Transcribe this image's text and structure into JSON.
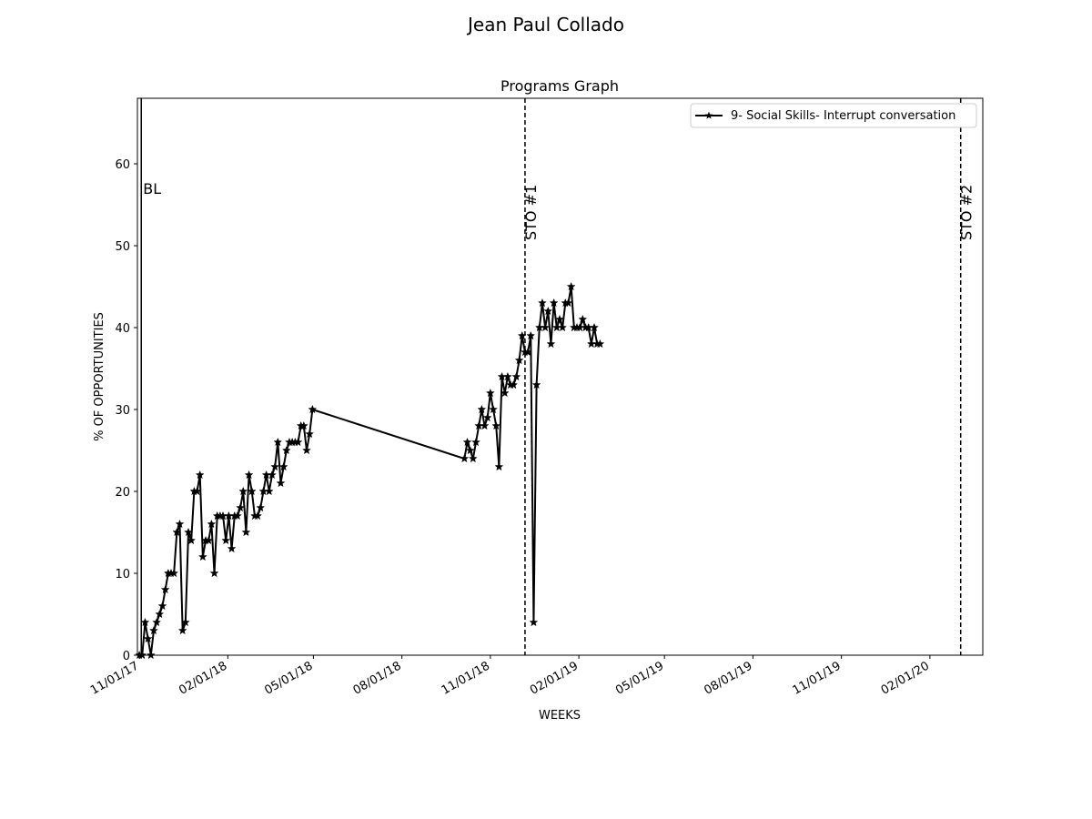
{
  "chart_data": {
    "type": "line",
    "suptitle": "Jean Paul  Collado",
    "title": "Programs Graph",
    "xlabel": "WEEKS",
    "ylabel": "% OF OPPORTUNITIES",
    "ylim": [
      0,
      68
    ],
    "xlim": [
      "2017-10-30",
      "2020-03-27"
    ],
    "y_ticks": [
      0,
      10,
      20,
      30,
      40,
      50,
      60
    ],
    "x_ticks": [
      "11/01/17",
      "02/01/18",
      "05/01/18",
      "08/01/18",
      "11/01/18",
      "02/01/19",
      "05/01/19",
      "08/01/19",
      "11/01/19",
      "02/01/20"
    ],
    "x_tick_dates": [
      "2017-11-01",
      "2018-02-01",
      "2018-05-01",
      "2018-08-01",
      "2018-11-01",
      "2019-02-01",
      "2019-05-01",
      "2019-08-01",
      "2019-11-01",
      "2020-02-01"
    ],
    "grid": false,
    "legend_position": "upper right",
    "series": [
      {
        "name": "9- Social Skills- Interrupt conversation",
        "color": "#000000",
        "marker": "star",
        "points": [
          [
            "2017-11-01",
            0
          ],
          [
            "2017-11-04",
            0
          ],
          [
            "2017-11-07",
            4
          ],
          [
            "2017-11-10",
            2
          ],
          [
            "2017-11-13",
            0
          ],
          [
            "2017-11-16",
            3
          ],
          [
            "2017-11-19",
            4
          ],
          [
            "2017-11-22",
            5
          ],
          [
            "2017-11-25",
            6
          ],
          [
            "2017-11-28",
            8
          ],
          [
            "2017-12-01",
            10
          ],
          [
            "2017-12-04",
            10
          ],
          [
            "2017-12-07",
            10
          ],
          [
            "2017-12-10",
            15
          ],
          [
            "2017-12-13",
            16
          ],
          [
            "2017-12-16",
            3
          ],
          [
            "2017-12-19",
            4
          ],
          [
            "2017-12-22",
            15
          ],
          [
            "2017-12-25",
            14
          ],
          [
            "2017-12-28",
            20
          ],
          [
            "2017-12-31",
            20
          ],
          [
            "2018-01-03",
            22
          ],
          [
            "2018-01-06",
            12
          ],
          [
            "2018-01-09",
            14
          ],
          [
            "2018-01-12",
            14
          ],
          [
            "2018-01-15",
            16
          ],
          [
            "2018-01-18",
            10
          ],
          [
            "2018-01-21",
            17
          ],
          [
            "2018-01-24",
            17
          ],
          [
            "2018-01-27",
            17
          ],
          [
            "2018-01-30",
            14
          ],
          [
            "2018-02-02",
            17
          ],
          [
            "2018-02-05",
            13
          ],
          [
            "2018-02-08",
            17
          ],
          [
            "2018-02-11",
            17
          ],
          [
            "2018-02-14",
            18
          ],
          [
            "2018-02-17",
            20
          ],
          [
            "2018-02-20",
            15
          ],
          [
            "2018-02-23",
            22
          ],
          [
            "2018-02-26",
            20
          ],
          [
            "2018-03-01",
            17
          ],
          [
            "2018-03-04",
            17
          ],
          [
            "2018-03-07",
            18
          ],
          [
            "2018-03-10",
            20
          ],
          [
            "2018-03-13",
            22
          ],
          [
            "2018-03-16",
            20
          ],
          [
            "2018-03-19",
            22
          ],
          [
            "2018-03-22",
            23
          ],
          [
            "2018-03-25",
            26
          ],
          [
            "2018-03-28",
            21
          ],
          [
            "2018-03-31",
            23
          ],
          [
            "2018-04-03",
            25
          ],
          [
            "2018-04-06",
            26
          ],
          [
            "2018-04-09",
            26
          ],
          [
            "2018-04-12",
            26
          ],
          [
            "2018-04-15",
            26
          ],
          [
            "2018-04-18",
            28
          ],
          [
            "2018-04-21",
            28
          ],
          [
            "2018-04-24",
            25
          ],
          [
            "2018-04-27",
            27
          ],
          [
            "2018-04-30",
            30
          ],
          [
            "2018-10-05",
            24
          ],
          [
            "2018-10-08",
            26
          ],
          [
            "2018-10-11",
            25
          ],
          [
            "2018-10-14",
            24
          ],
          [
            "2018-10-17",
            26
          ],
          [
            "2018-10-20",
            28
          ],
          [
            "2018-10-23",
            30
          ],
          [
            "2018-10-26",
            28
          ],
          [
            "2018-10-29",
            29
          ],
          [
            "2018-11-01",
            32
          ],
          [
            "2018-11-04",
            30
          ],
          [
            "2018-11-07",
            28
          ],
          [
            "2018-11-10",
            23
          ],
          [
            "2018-11-13",
            34
          ],
          [
            "2018-11-16",
            32
          ],
          [
            "2018-11-19",
            34
          ],
          [
            "2018-11-22",
            33
          ],
          [
            "2018-11-25",
            33
          ],
          [
            "2018-11-28",
            34
          ],
          [
            "2018-12-01",
            36
          ],
          [
            "2018-12-04",
            39
          ],
          [
            "2018-12-07",
            37
          ],
          [
            "2018-12-10",
            37
          ],
          [
            "2018-12-13",
            39
          ],
          [
            "2018-12-16",
            4
          ],
          [
            "2018-12-19",
            33
          ],
          [
            "2018-12-22",
            40
          ],
          [
            "2018-12-25",
            43
          ],
          [
            "2018-12-28",
            40
          ],
          [
            "2018-12-31",
            42
          ],
          [
            "2019-01-03",
            38
          ],
          [
            "2019-01-06",
            43
          ],
          [
            "2019-01-09",
            40
          ],
          [
            "2019-01-12",
            41
          ],
          [
            "2019-01-15",
            40
          ],
          [
            "2019-01-18",
            43
          ],
          [
            "2019-01-21",
            43
          ],
          [
            "2019-01-24",
            45
          ],
          [
            "2019-01-27",
            40
          ],
          [
            "2019-01-30",
            40
          ],
          [
            "2019-02-02",
            40
          ],
          [
            "2019-02-05",
            41
          ],
          [
            "2019-02-08",
            40
          ],
          [
            "2019-02-11",
            40
          ],
          [
            "2019-02-14",
            38
          ],
          [
            "2019-02-17",
            40
          ],
          [
            "2019-02-20",
            38
          ],
          [
            "2019-02-23",
            38
          ]
        ]
      }
    ],
    "phase_lines": [
      {
        "label": "BL",
        "date": "2017-11-03",
        "style": "solid"
      },
      {
        "label": "STO #1",
        "date": "2018-12-07",
        "style": "dashed"
      },
      {
        "label": "STO #2",
        "date": "2020-03-04",
        "style": "dashed"
      }
    ]
  }
}
